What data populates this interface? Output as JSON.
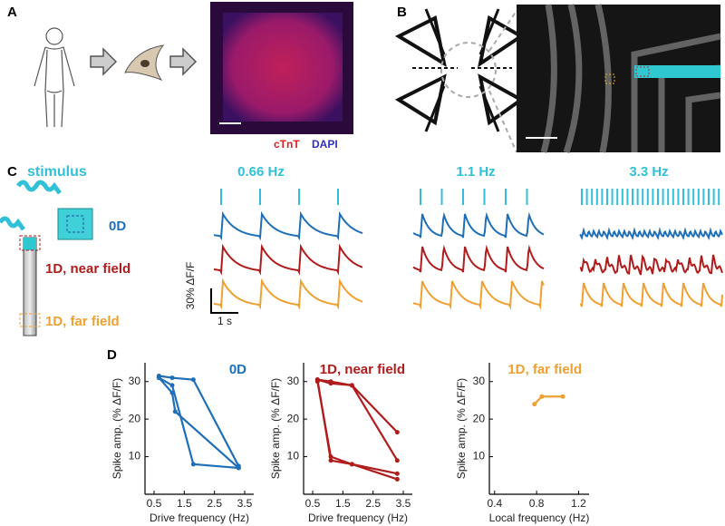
{
  "panel_labels": [
    "A",
    "B",
    "C",
    "D"
  ],
  "panel_a": {
    "stain_labels": [
      "cTnT",
      "DAPI"
    ]
  },
  "panel_c": {
    "stimulus_label": "stimulus",
    "conditions": [
      "0D",
      "1D, near field",
      "1D, far field"
    ],
    "frequencies": [
      "0.66 Hz",
      "1.1 Hz",
      "3.3 Hz"
    ],
    "scale_bar_y": "30% ΔF/F",
    "scale_bar_x": "1 s"
  },
  "chart_data": [
    {
      "type": "line",
      "title": "0D",
      "x_label": "Drive frequency (Hz)",
      "y_label": "Spike amp. (% ΔF/F)",
      "xlim": [
        0.2,
        3.8
      ],
      "xticks": [
        0.5,
        1.5,
        2.5,
        3.5
      ],
      "ylim": [
        0,
        35
      ],
      "yticks": [
        10,
        20,
        30
      ],
      "series": [
        {
          "color": "#1f6fb8",
          "x": [
            0.66,
            1.1,
            1.8,
            3.3
          ],
          "values": [
            31.5,
            31,
            30.5,
            7.5
          ]
        },
        {
          "color": "#1f6fb8",
          "x": [
            0.66,
            1.1,
            1.8,
            3.3
          ],
          "values": [
            31,
            29,
            8,
            7
          ]
        },
        {
          "color": "#1f6fb8",
          "x": [
            0.66,
            1.1,
            1.2,
            3.3
          ],
          "values": [
            31,
            27,
            22,
            7
          ]
        }
      ]
    },
    {
      "type": "line",
      "title": "1D, near field",
      "x_label": "Drive frequency (Hz)",
      "y_label": "Spike amp. (% ΔF/F)",
      "xlim": [
        0.2,
        3.8
      ],
      "xticks": [
        0.5,
        1.5,
        2.5,
        3.5
      ],
      "ylim": [
        0,
        35
      ],
      "yticks": [
        10,
        20,
        30
      ],
      "series": [
        {
          "color": "#b01c1c",
          "x": [
            0.66,
            1.1,
            1.8,
            3.3
          ],
          "values": [
            30.5,
            29.5,
            29,
            16.5
          ]
        },
        {
          "color": "#b01c1c",
          "x": [
            0.66,
            1.1,
            1.8,
            3.3
          ],
          "values": [
            30.5,
            30,
            29,
            9
          ]
        },
        {
          "color": "#b01c1c",
          "x": [
            0.66,
            1.1,
            1.8,
            3.3
          ],
          "values": [
            30,
            10,
            8,
            5.5
          ]
        },
        {
          "color": "#b01c1c",
          "x": [
            0.66,
            1.1,
            1.8,
            3.3
          ],
          "values": [
            30.5,
            9,
            8,
            4
          ]
        }
      ]
    },
    {
      "type": "line",
      "title": "1D, far field",
      "x_label": "Local frequency (Hz)",
      "y_label": "Spike amp. (% ΔF/F)",
      "xlim": [
        0.35,
        1.3
      ],
      "xticks": [
        0.4,
        0.8,
        1.2
      ],
      "ylim": [
        0,
        35
      ],
      "yticks": [
        10,
        20,
        30
      ],
      "series": [
        {
          "color": "#f0a030",
          "x": [
            0.78,
            0.85,
            1.05
          ],
          "values": [
            24,
            26,
            26
          ]
        }
      ]
    }
  ]
}
